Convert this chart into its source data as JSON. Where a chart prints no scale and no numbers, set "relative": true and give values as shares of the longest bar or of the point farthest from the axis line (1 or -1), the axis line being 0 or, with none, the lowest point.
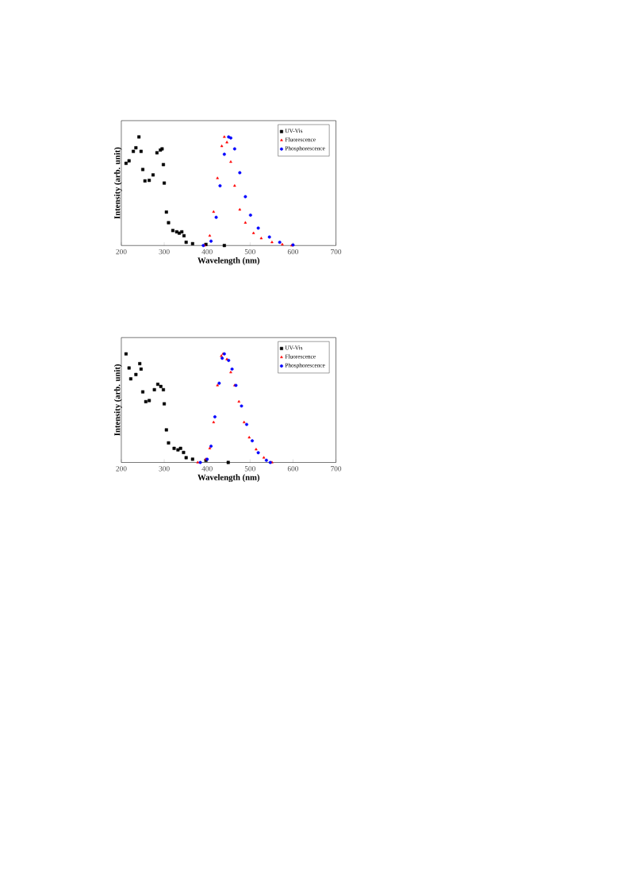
{
  "chart_data": [
    {
      "type": "scatter",
      "xlabel": "Wavelength (nm)",
      "ylabel": "Intensity (arb. unit)",
      "relative": true,
      "xlim": [
        200,
        700
      ],
      "xticks": [
        200,
        300,
        400,
        500,
        600,
        700
      ],
      "legend": "top right",
      "series": [
        {
          "name": "UV-Vis",
          "color": "#000000",
          "marker": "square",
          "x": [
            211,
            218,
            228,
            234,
            241,
            246,
            250,
            255,
            265,
            274,
            283,
            291,
            295,
            298,
            300,
            305,
            310,
            320,
            329,
            335,
            341,
            346,
            351,
            366,
            397,
            440
          ],
          "values": [
            0.757,
            0.78,
            0.867,
            0.9,
            1.0,
            0.867,
            0.7,
            0.595,
            0.6,
            0.65,
            0.854,
            0.879,
            0.89,
            0.745,
            0.575,
            0.308,
            0.21,
            0.138,
            0.126,
            0.114,
            0.126,
            0.09,
            0.03,
            0.017,
            0.01,
            0.0
          ]
        },
        {
          "name": "Fluorescence",
          "color": "#ff0000",
          "marker": "triangle",
          "x": [
            394,
            406,
            415,
            424,
            434,
            440,
            446,
            455,
            464,
            476,
            489,
            508,
            526,
            551,
            575,
            597
          ],
          "values": [
            0.0,
            0.09,
            0.31,
            0.62,
            0.915,
            1.0,
            0.95,
            0.77,
            0.55,
            0.33,
            0.21,
            0.114,
            0.066,
            0.03,
            0.01,
            0.0
          ]
        },
        {
          "name": "Phosphorescence",
          "color": "#0000ff",
          "marker": "circle",
          "x": [
            391,
            409,
            421,
            430,
            440,
            450,
            455,
            464,
            476,
            489,
            501,
            519,
            545,
            569,
            600
          ],
          "values": [
            0.0,
            0.04,
            0.26,
            0.55,
            0.84,
            1.0,
            0.99,
            0.89,
            0.67,
            0.45,
            0.28,
            0.16,
            0.078,
            0.03,
            0.005
          ]
        }
      ]
    },
    {
      "type": "scatter",
      "xlabel": "Wavelength (nm)",
      "ylabel": "Intensity (arb. unit)",
      "relative": true,
      "xlim": [
        200,
        700
      ],
      "xticks": [
        200,
        300,
        400,
        500,
        600,
        700
      ],
      "legend": "top right",
      "series": [
        {
          "name": "UV-Vis",
          "color": "#000000",
          "marker": "square",
          "x": [
            211,
            218,
            222,
            234,
            243,
            246,
            250,
            257,
            265,
            277,
            285,
            292,
            298,
            300,
            305,
            310,
            323,
            332,
            338,
            345,
            351,
            366,
            397,
            449
          ],
          "values": [
            1.0,
            0.87,
            0.77,
            0.81,
            0.91,
            0.86,
            0.65,
            0.56,
            0.57,
            0.67,
            0.72,
            0.7,
            0.67,
            0.54,
            0.3,
            0.18,
            0.13,
            0.116,
            0.13,
            0.092,
            0.044,
            0.03,
            0.02,
            0.0
          ]
        },
        {
          "name": "Fluorescence",
          "color": "#ff0000",
          "marker": "triangle",
          "x": [
            378,
            397,
            406,
            415,
            424,
            433,
            437,
            446,
            455,
            464,
            474,
            486,
            498,
            514,
            532,
            551
          ],
          "values": [
            0.0,
            0.03,
            0.13,
            0.37,
            0.71,
            0.98,
            1.0,
            0.95,
            0.83,
            0.71,
            0.56,
            0.37,
            0.23,
            0.12,
            0.044,
            0.0
          ]
        },
        {
          "name": "Phosphorescence",
          "color": "#0000ff",
          "marker": "circle",
          "x": [
            384,
            400,
            409,
            418,
            428,
            435,
            440,
            450,
            458,
            467,
            480,
            492,
            505,
            519,
            538,
            547
          ],
          "values": [
            0.0,
            0.03,
            0.15,
            0.42,
            0.73,
            0.96,
            1.0,
            0.94,
            0.86,
            0.71,
            0.52,
            0.35,
            0.2,
            0.09,
            0.02,
            0.0
          ]
        }
      ]
    }
  ]
}
